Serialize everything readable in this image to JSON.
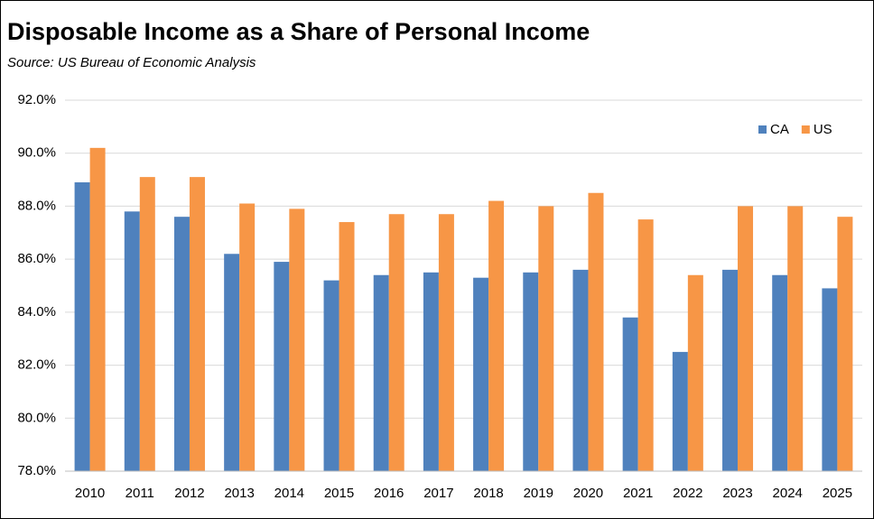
{
  "chart_data": {
    "type": "bar",
    "title": "Disposable Income as a Share of Personal Income",
    "subtitle": "Source:  US Bureau of Economic Analysis",
    "categories": [
      "2010",
      "2011",
      "2012",
      "2013",
      "2014",
      "2015",
      "2016",
      "2017",
      "2018",
      "2019",
      "2020",
      "2021",
      "2022",
      "2023",
      "2024",
      "2025"
    ],
    "series": [
      {
        "name": "CA",
        "color": "#4f81bd",
        "values": [
          88.9,
          87.8,
          87.6,
          86.2,
          85.9,
          85.2,
          85.4,
          85.5,
          85.3,
          85.5,
          85.6,
          83.8,
          82.5,
          85.6,
          85.4,
          84.9
        ]
      },
      {
        "name": "US",
        "color": "#f79646",
        "values": [
          90.2,
          89.1,
          89.1,
          88.1,
          87.9,
          87.4,
          87.7,
          87.7,
          88.2,
          88.0,
          88.5,
          87.5,
          85.4,
          88.0,
          88.0,
          87.6
        ]
      }
    ],
    "ylim": [
      78,
      92
    ],
    "yticks": [
      {
        "value": 78,
        "label": "78.0%"
      },
      {
        "value": 80,
        "label": "80.0%"
      },
      {
        "value": 82,
        "label": "82.0%"
      },
      {
        "value": 84,
        "label": "84.0%"
      },
      {
        "value": 86,
        "label": "86.0%"
      },
      {
        "value": 88,
        "label": "88.0%"
      },
      {
        "value": 90,
        "label": "90.0%"
      },
      {
        "value": 92,
        "label": "92.0%"
      }
    ],
    "grid": true,
    "legend": "top-right"
  }
}
